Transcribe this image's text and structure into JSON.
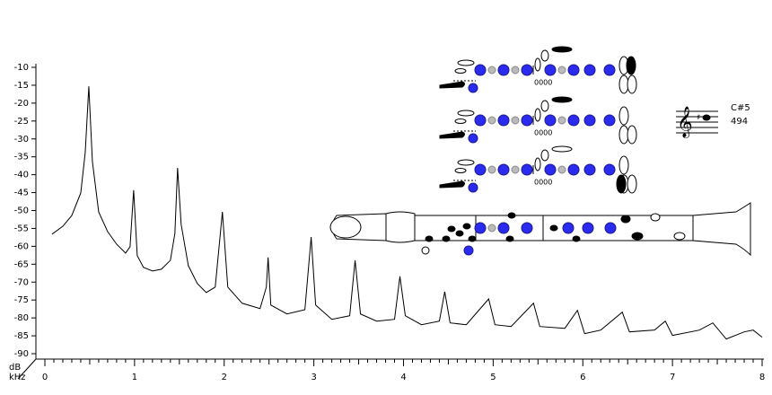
{
  "chart_data": {
    "type": "line",
    "x_unit": "kHz",
    "y_unit": "dB",
    "note": "C#5",
    "frequency": "494",
    "xlim": [
      0,
      8
    ],
    "xticks": [
      0,
      1,
      2,
      3,
      4,
      5,
      6,
      7,
      8
    ],
    "ylim": [
      -90,
      -10
    ],
    "yticks": [
      -90,
      -85,
      -80,
      -75,
      -70,
      -65,
      -60,
      -55,
      -50,
      -45,
      -40,
      -35,
      -30,
      -25,
      -20,
      -15,
      -10
    ],
    "color": "#000000",
    "x": [
      0.08,
      0.2,
      0.3,
      0.4,
      0.45,
      0.49,
      0.53,
      0.6,
      0.7,
      0.8,
      0.9,
      0.95,
      0.99,
      1.03,
      1.1,
      1.2,
      1.3,
      1.4,
      1.45,
      1.48,
      1.52,
      1.6,
      1.7,
      1.8,
      1.9,
      1.98,
      2.04,
      2.2,
      2.4,
      2.47,
      2.49,
      2.52,
      2.7,
      2.9,
      2.97,
      3.02,
      3.2,
      3.4,
      3.46,
      3.52,
      3.7,
      3.9,
      3.96,
      4.02,
      4.2,
      4.4,
      4.46,
      4.52,
      4.7,
      4.95,
      5.02,
      5.2,
      5.45,
      5.52,
      5.8,
      5.94,
      6.02,
      6.2,
      6.44,
      6.52,
      6.8,
      6.92,
      7.0,
      7.3,
      7.45,
      7.6,
      7.8,
      7.9,
      8.0
    ],
    "values": [
      -56.6,
      -54.4,
      -51.4,
      -45.1,
      -33.8,
      -15.3,
      -36.3,
      -50.4,
      -55.9,
      -59.4,
      -61.9,
      -60.1,
      -44.3,
      -62.6,
      -65.9,
      -66.9,
      -66.4,
      -63.9,
      -56.4,
      -38.1,
      -53.9,
      -65.4,
      -70.4,
      -72.9,
      -71.4,
      -50.4,
      -71.4,
      -75.9,
      -77.4,
      -71.4,
      -63.1,
      -76.4,
      -78.9,
      -77.7,
      -57.4,
      -76.4,
      -80.4,
      -79.4,
      -63.9,
      -78.9,
      -80.9,
      -80.4,
      -68.4,
      -79.4,
      -81.9,
      -80.9,
      -72.7,
      -81.4,
      -81.9,
      -74.7,
      -81.9,
      -82.4,
      -75.9,
      -82.4,
      -82.9,
      -77.9,
      -84.4,
      -83.4,
      -78.4,
      -83.9,
      -83.4,
      -80.9,
      -84.9,
      -83.4,
      -81.4,
      -85.9,
      -83.9,
      -83.4,
      -85.4
    ]
  }
}
